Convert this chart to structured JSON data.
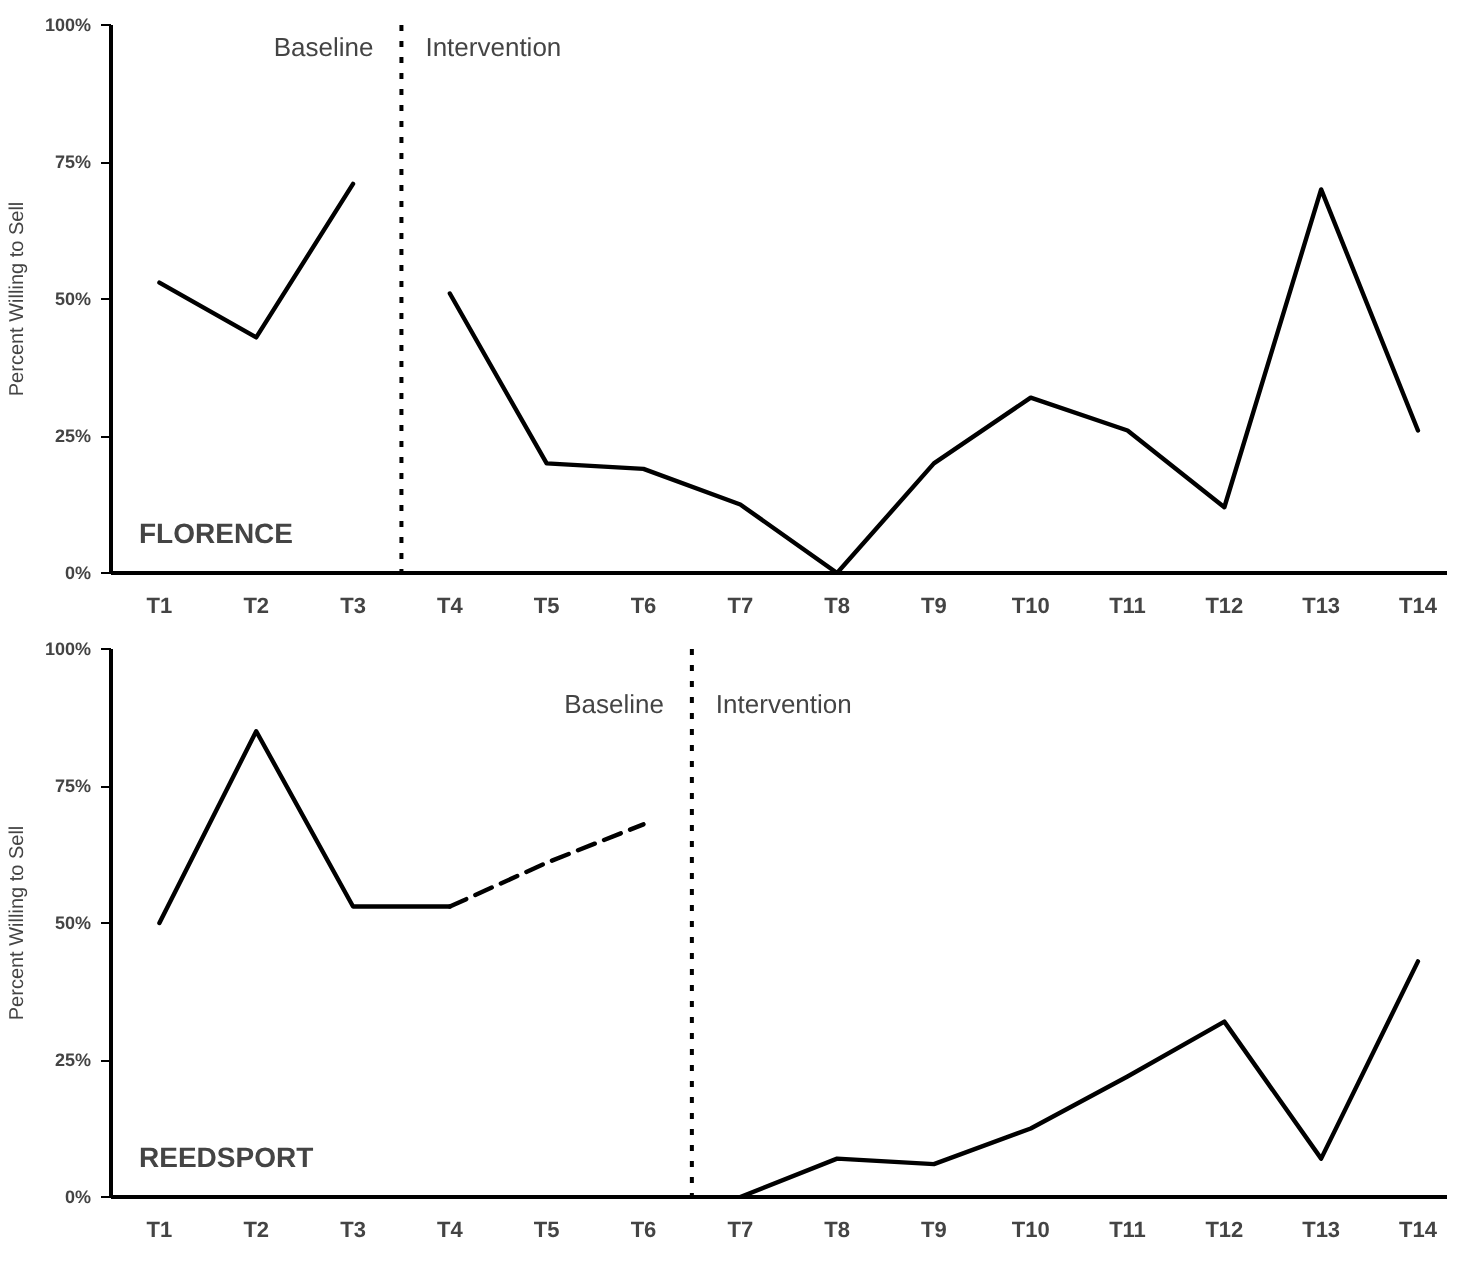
{
  "chart_data": [
    {
      "type": "line",
      "ylabel": "Percent Willing to Sell",
      "ylim": [
        0,
        100
      ],
      "categories": [
        "T1",
        "T2",
        "T3",
        "T4",
        "T5",
        "T6",
        "T7",
        "T8",
        "T9",
        "T10",
        "T11",
        "T12",
        "T13",
        "T14"
      ],
      "yticks": [
        {
          "value": 0,
          "label": "0%"
        },
        {
          "value": 25,
          "label": "25%"
        },
        {
          "value": 50,
          "label": "50%"
        },
        {
          "value": 75,
          "label": "75%"
        },
        {
          "value": 100,
          "label": "100%"
        }
      ],
      "grid": false,
      "marker": "none",
      "series": [
        {
          "color": "#000000",
          "values": [
            53,
            43,
            71,
            null,
            null,
            null,
            null,
            null,
            null,
            null,
            null,
            null,
            null,
            null
          ],
          "line_style": "solid"
        },
        {
          "color": "#000000",
          "values": [
            null,
            null,
            null,
            51,
            20,
            19,
            12.5,
            0,
            20,
            32,
            26,
            12,
            70,
            26
          ],
          "line_style": "solid"
        }
      ],
      "annotations": [
        "Baseline",
        "Intervention",
        "FLORENCE"
      ]
    },
    {
      "type": "line",
      "ylabel": "Percent Willing to Sell",
      "ylim": [
        0,
        100
      ],
      "categories": [
        "T1",
        "T2",
        "T3",
        "T4",
        "T5",
        "T6",
        "T7",
        "T8",
        "T9",
        "T10",
        "T11",
        "T12",
        "T13",
        "T14"
      ],
      "yticks": [
        {
          "value": 0,
          "label": "0%"
        },
        {
          "value": 25,
          "label": "25%"
        },
        {
          "value": 50,
          "label": "50%"
        },
        {
          "value": 75,
          "label": "75%"
        },
        {
          "value": 100,
          "label": "100%"
        }
      ],
      "grid": false,
      "marker": "none",
      "series": [
        {
          "color": "#000000",
          "values": [
            50,
            85,
            53,
            53,
            null,
            null,
            null,
            null,
            null,
            null,
            null,
            null,
            null,
            null
          ],
          "line_style": "solid"
        },
        {
          "color": "#000000",
          "values": [
            null,
            null,
            null,
            53,
            61,
            68,
            null,
            null,
            null,
            null,
            null,
            null,
            null,
            null
          ],
          "line_style": "dashed"
        },
        {
          "color": "#000000",
          "values": [
            null,
            null,
            null,
            null,
            null,
            null,
            0,
            7,
            6,
            12.5,
            22,
            32,
            7,
            43
          ],
          "line_style": "solid"
        }
      ],
      "annotations": [
        "Baseline",
        "Intervention",
        "REEDSPORT"
      ]
    }
  ]
}
